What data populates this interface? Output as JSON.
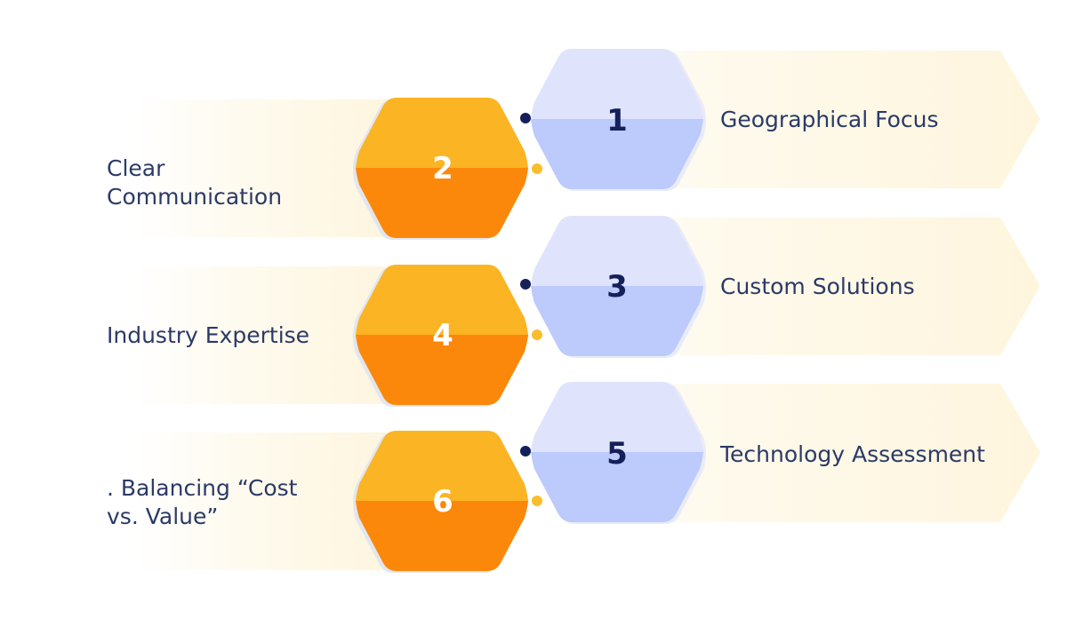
{
  "items": [
    {
      "number": "1",
      "label": "Geographical Focus",
      "label_line2": ""
    },
    {
      "number": "2",
      "label": "Clear Communication",
      "label_line2": ""
    },
    {
      "number": "3",
      "label": "Custom Solutions",
      "label_line2": ""
    },
    {
      "number": "4",
      "label": "Industry Expertise",
      "label_line2": ""
    },
    {
      "number": "5",
      "label": "Technology Assessment",
      "label_line2": ""
    },
    {
      "number": "6",
      "label": ". Balancing “Cost",
      "label_line2": "vs. Value”"
    }
  ],
  "colors": {
    "blue_light": "#dfe4fc",
    "blue_dark": "#bccafc",
    "orange_light": "#fbb423",
    "orange_dark": "#fb880a",
    "text": "#2b3a67",
    "number_dark": "#14205a",
    "arrow_band": "#fef7e3",
    "dot_navy": "#14205a",
    "dot_gold": "#fbbd2a"
  }
}
